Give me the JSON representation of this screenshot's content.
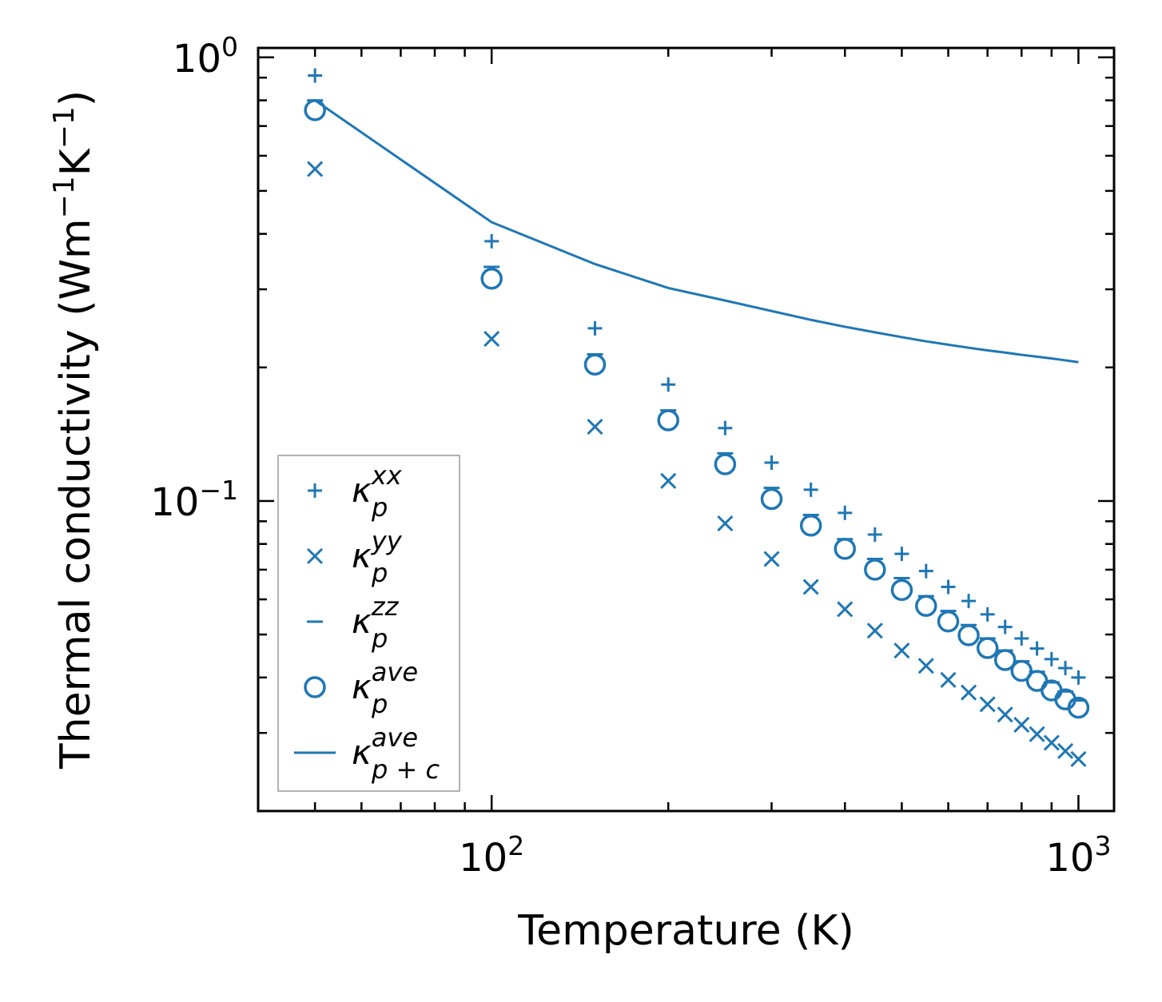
{
  "chart_data": {
    "type": "scatter",
    "xscale": "log",
    "yscale": "log",
    "xlabel": "Temperature (K)",
    "ylabel": "Thermal conductivity (Wm",
    "ylabel_parts": [
      "Thermal conductivity (Wm",
      "−1",
      "K",
      "−1",
      ")"
    ],
    "xlim": [
      40,
      1150
    ],
    "ylim": [
      0.02,
      1.05
    ],
    "x_ticks": [
      {
        "value": 100,
        "base": "10",
        "exp": "2"
      },
      {
        "value": 1000,
        "base": "10",
        "exp": "3"
      }
    ],
    "y_ticks": [
      {
        "value": 0.1,
        "base": "10",
        "exp": "−1"
      },
      {
        "value": 1.0,
        "base": "10",
        "exp": "0"
      }
    ],
    "color": "#1f77b4",
    "x": [
      50,
      100,
      150,
      200,
      250,
      300,
      350,
      400,
      450,
      500,
      550,
      600,
      650,
      700,
      750,
      800,
      850,
      900,
      950,
      1000
    ],
    "series": [
      {
        "name": "kappa_p_xx",
        "marker": "plus",
        "values": [
          0.91,
          0.385,
          0.245,
          0.183,
          0.146,
          0.122,
          0.106,
          0.094,
          0.084,
          0.076,
          0.0695,
          0.064,
          0.0595,
          0.0555,
          0.052,
          0.049,
          0.0465,
          0.044,
          0.042,
          0.04
        ]
      },
      {
        "name": "kappa_p_yy",
        "marker": "x",
        "values": [
          0.56,
          0.232,
          0.147,
          0.111,
          0.089,
          0.074,
          0.064,
          0.057,
          0.051,
          0.046,
          0.0425,
          0.0395,
          0.037,
          0.0348,
          0.033,
          0.0313,
          0.0298,
          0.0285,
          0.0273,
          0.0262
        ]
      },
      {
        "name": "kappa_p_zz",
        "marker": "hline",
        "values": [
          0.8,
          0.337,
          0.214,
          0.16,
          0.128,
          0.107,
          0.093,
          0.082,
          0.074,
          0.067,
          0.061,
          0.0565,
          0.0525,
          0.049,
          0.046,
          0.0435,
          0.0412,
          0.039,
          0.0372,
          0.0355
        ]
      },
      {
        "name": "kappa_p_ave",
        "marker": "circle",
        "values": [
          0.76,
          0.317,
          0.203,
          0.152,
          0.121,
          0.101,
          0.088,
          0.078,
          0.07,
          0.063,
          0.058,
          0.0535,
          0.0498,
          0.0466,
          0.0438,
          0.0414,
          0.0393,
          0.0374,
          0.0357,
          0.0342
        ]
      },
      {
        "name": "kappa_pc_ave",
        "marker": "line",
        "values": [
          0.8,
          0.425,
          0.342,
          0.302,
          0.283,
          0.268,
          0.256,
          0.247,
          0.24,
          0.234,
          0.229,
          0.225,
          0.2215,
          0.2185,
          0.216,
          0.2135,
          0.2115,
          0.2095,
          0.2075,
          0.2055
        ]
      }
    ],
    "legend": {
      "location": "lower-left",
      "entries": [
        {
          "marker": "plus",
          "base": "κ",
          "sub": "p",
          "sup": "xx"
        },
        {
          "marker": "x",
          "base": "κ",
          "sub": "p",
          "sup": "yy"
        },
        {
          "marker": "hline",
          "base": "κ",
          "sub": "p",
          "sup": "zz"
        },
        {
          "marker": "circle",
          "base": "κ",
          "sub": "p",
          "sup": "ave"
        },
        {
          "marker": "line",
          "base": "κ",
          "sub": "p + c",
          "sup": "ave"
        }
      ]
    }
  }
}
